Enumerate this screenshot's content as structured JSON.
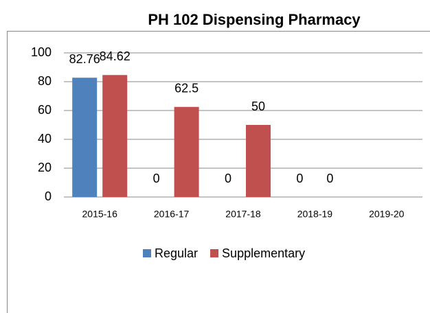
{
  "chart_data": {
    "type": "bar",
    "title": "PH 102 Dispensing Pharmacy",
    "categories": [
      "2015-16",
      "2016-17",
      "2017-18",
      "2018-19",
      "2019-20"
    ],
    "series": [
      {
        "name": "Regular",
        "color": "#4f81bd",
        "values": [
          82.76,
          0,
          0,
          0,
          null
        ]
      },
      {
        "name": "Supplementary",
        "color": "#c0504d",
        "values": [
          84.62,
          62.5,
          50,
          0,
          null
        ]
      }
    ],
    "ylim": [
      0,
      100
    ],
    "yticks": [
      0,
      20,
      40,
      60,
      80,
      100
    ],
    "grid": true,
    "legend": "bottom"
  }
}
